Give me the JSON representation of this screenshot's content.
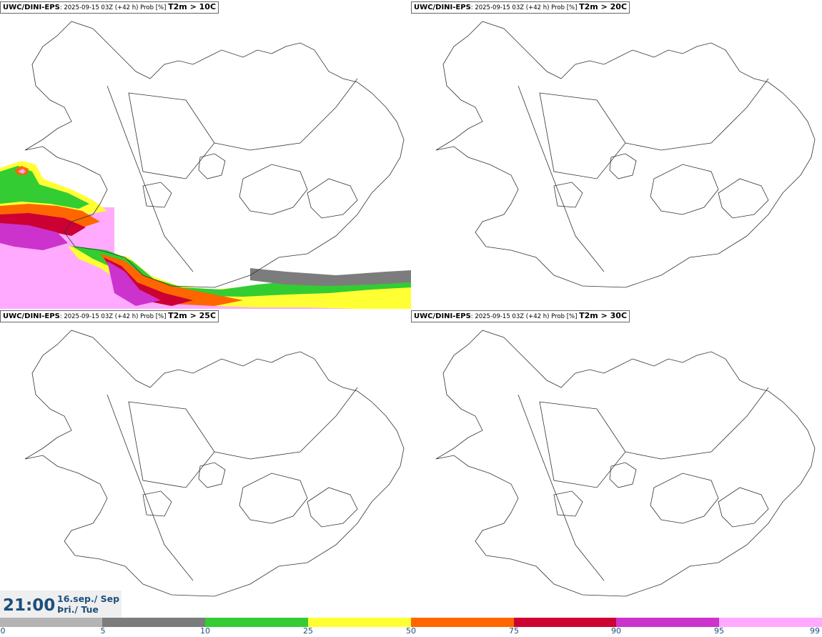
{
  "panels": [
    {
      "model": "UWC/DINI-EPS",
      "subtitle": ": 2025-09-15 03Z (+42 h) Prob [%] ",
      "variable": "T2m > 10C"
    },
    {
      "model": "UWC/DINI-EPS",
      "subtitle": ": 2025-09-15 03Z (+42 h) Prob [%] ",
      "variable": "T2m > 20C"
    },
    {
      "model": "UWC/DINI-EPS",
      "subtitle": ": 2025-09-15 03Z (+42 h) Prob [%] ",
      "variable": "T2m > 25C"
    },
    {
      "model": "UWC/DINI-EPS",
      "subtitle": ": 2025-09-15 03Z (+42 h) Prob [%] ",
      "variable": "T2m > 30C"
    }
  ],
  "valid_time": {
    "time": "21:00",
    "date_line1": "16.sep./ Sep",
    "date_line2": "Þri./ Tue"
  },
  "legend": {
    "ticks": [
      "0",
      "5",
      "10",
      "25",
      "50",
      "75",
      "90",
      "95",
      "99"
    ],
    "colors": [
      "#ffffff",
      "#b4b4b4",
      "#7c7c7c",
      "#33cc33",
      "#ffff33",
      "#ff6600",
      "#cc0033",
      "#cc33cc",
      "#ffaaff"
    ]
  }
}
